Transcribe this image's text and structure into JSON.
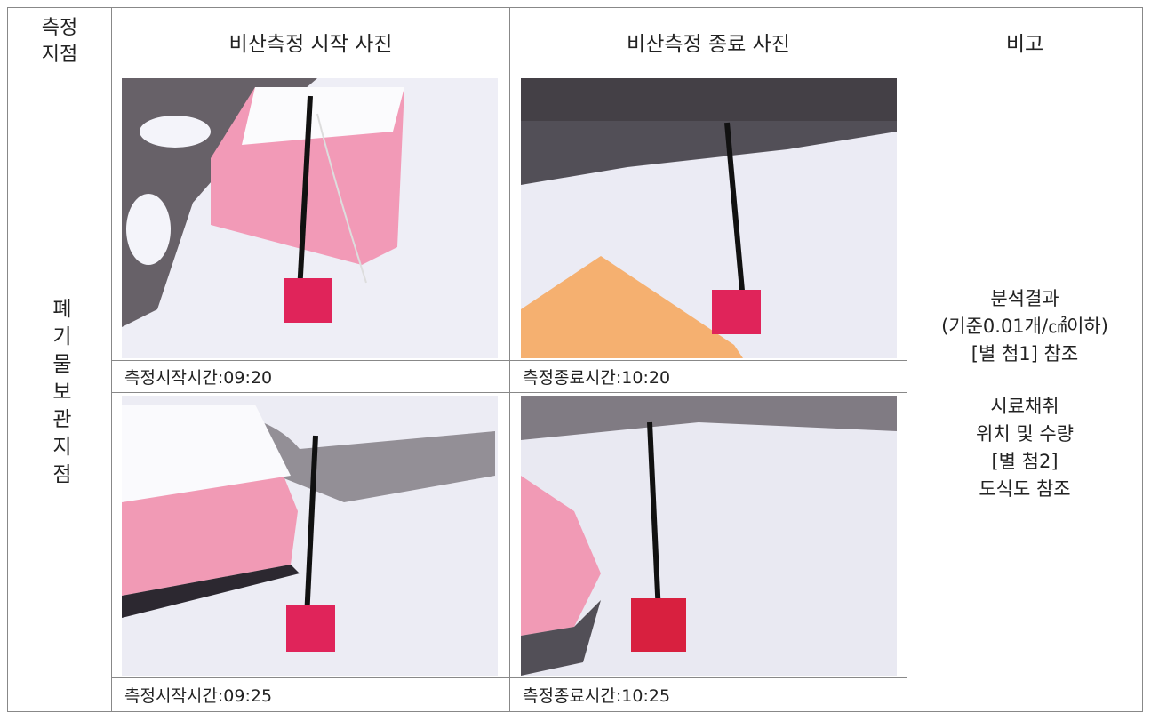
{
  "table": {
    "header": [
      "측정 지점",
      "비산측정 시작 사진",
      "비산측정 종료 사진",
      "비고"
    ],
    "location": "폐기물보관지점",
    "captions": [
      "측정시작시간:09:20",
      "측정종료시간:10:20",
      "측정시작시간:09:25",
      "측정종료시간:10:25"
    ],
    "remarks": [
      [
        "분석결과",
        "(기준0.01개/㎠이하)",
        "[별 첨1] 참조"
      ],
      [
        "시료채취",
        "위치 및 수량",
        "[별 첨2]",
        "도식도 참조"
      ]
    ]
  }
}
